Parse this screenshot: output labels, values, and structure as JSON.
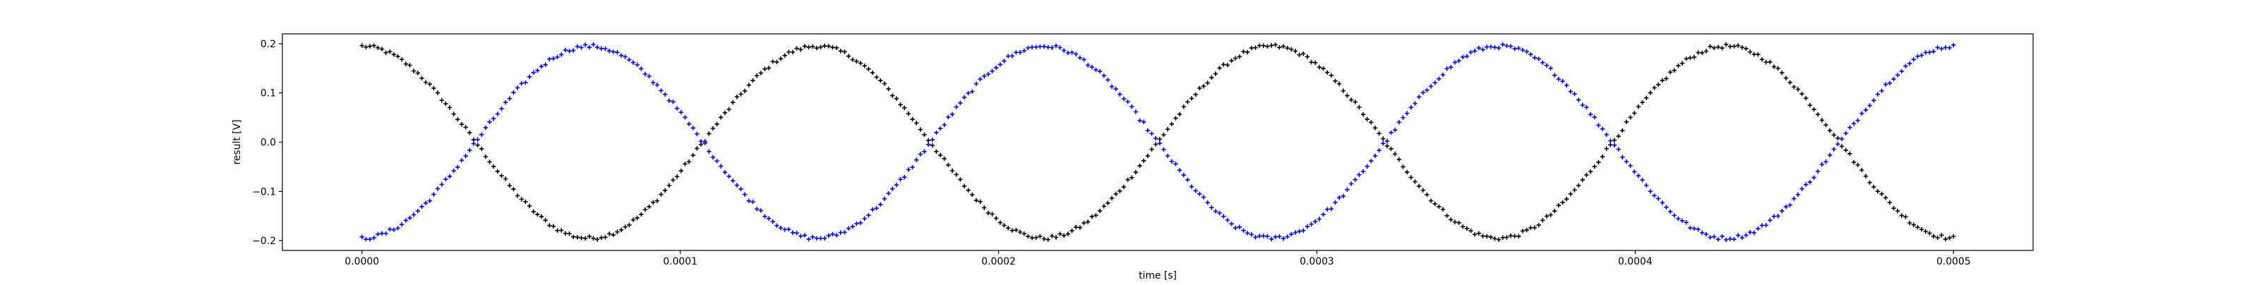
{
  "chart_data": {
    "type": "scatter",
    "title": "",
    "xlabel": "time [s]",
    "ylabel": "result [V]",
    "xlim": [
      -2.5e-05,
      0.000525
    ],
    "ylim": [
      -0.22,
      0.22
    ],
    "xticks": [
      0.0,
      0.0001,
      0.0002,
      0.0003,
      0.0004,
      0.0005
    ],
    "xtick_labels": [
      "0.0000",
      "0.0001",
      "0.0002",
      "0.0003",
      "0.0004",
      "0.0005"
    ],
    "yticks": [
      -0.2,
      -0.1,
      0.0,
      0.1,
      0.2
    ],
    "ytick_labels": [
      "−0.2",
      "−0.1",
      "0.0",
      "0.1",
      "0.2"
    ],
    "grid": false,
    "legend": "none",
    "x_range": [
      0.0,
      0.0005
    ],
    "num_points": 400,
    "series": [
      {
        "color": "#000000",
        "marker": "plus",
        "amplitude": 0.195,
        "frequency_hz": 7000,
        "phase_rad": 0.0,
        "waveform": "y = 0.195*cos(2*pi*7000*t)",
        "sample_points": [
          {
            "x": 0.0,
            "y": 0.19
          },
          {
            "x": 7.14e-05,
            "y": -0.2
          },
          {
            "x": 0.0001429,
            "y": 0.19
          },
          {
            "x": 0.0002143,
            "y": -0.2
          },
          {
            "x": 0.0002857,
            "y": 0.19
          },
          {
            "x": 0.0003571,
            "y": -0.2
          },
          {
            "x": 0.0004286,
            "y": 0.19
          },
          {
            "x": 0.0005,
            "y": -0.2
          }
        ]
      },
      {
        "color": "#0000ff",
        "marker": "plus",
        "amplitude": 0.195,
        "frequency_hz": 7000,
        "phase_rad": 3.14159,
        "waveform": "y = -0.195*cos(2*pi*7000*t)",
        "sample_points": [
          {
            "x": 0.0,
            "y": -0.19
          },
          {
            "x": 7.14e-05,
            "y": 0.2
          },
          {
            "x": 0.0001429,
            "y": -0.19
          },
          {
            "x": 0.0002143,
            "y": 0.2
          },
          {
            "x": 0.0002857,
            "y": -0.19
          },
          {
            "x": 0.0003571,
            "y": 0.2
          },
          {
            "x": 0.0004286,
            "y": -0.19
          },
          {
            "x": 0.0005,
            "y": 0.2
          }
        ]
      }
    ]
  }
}
